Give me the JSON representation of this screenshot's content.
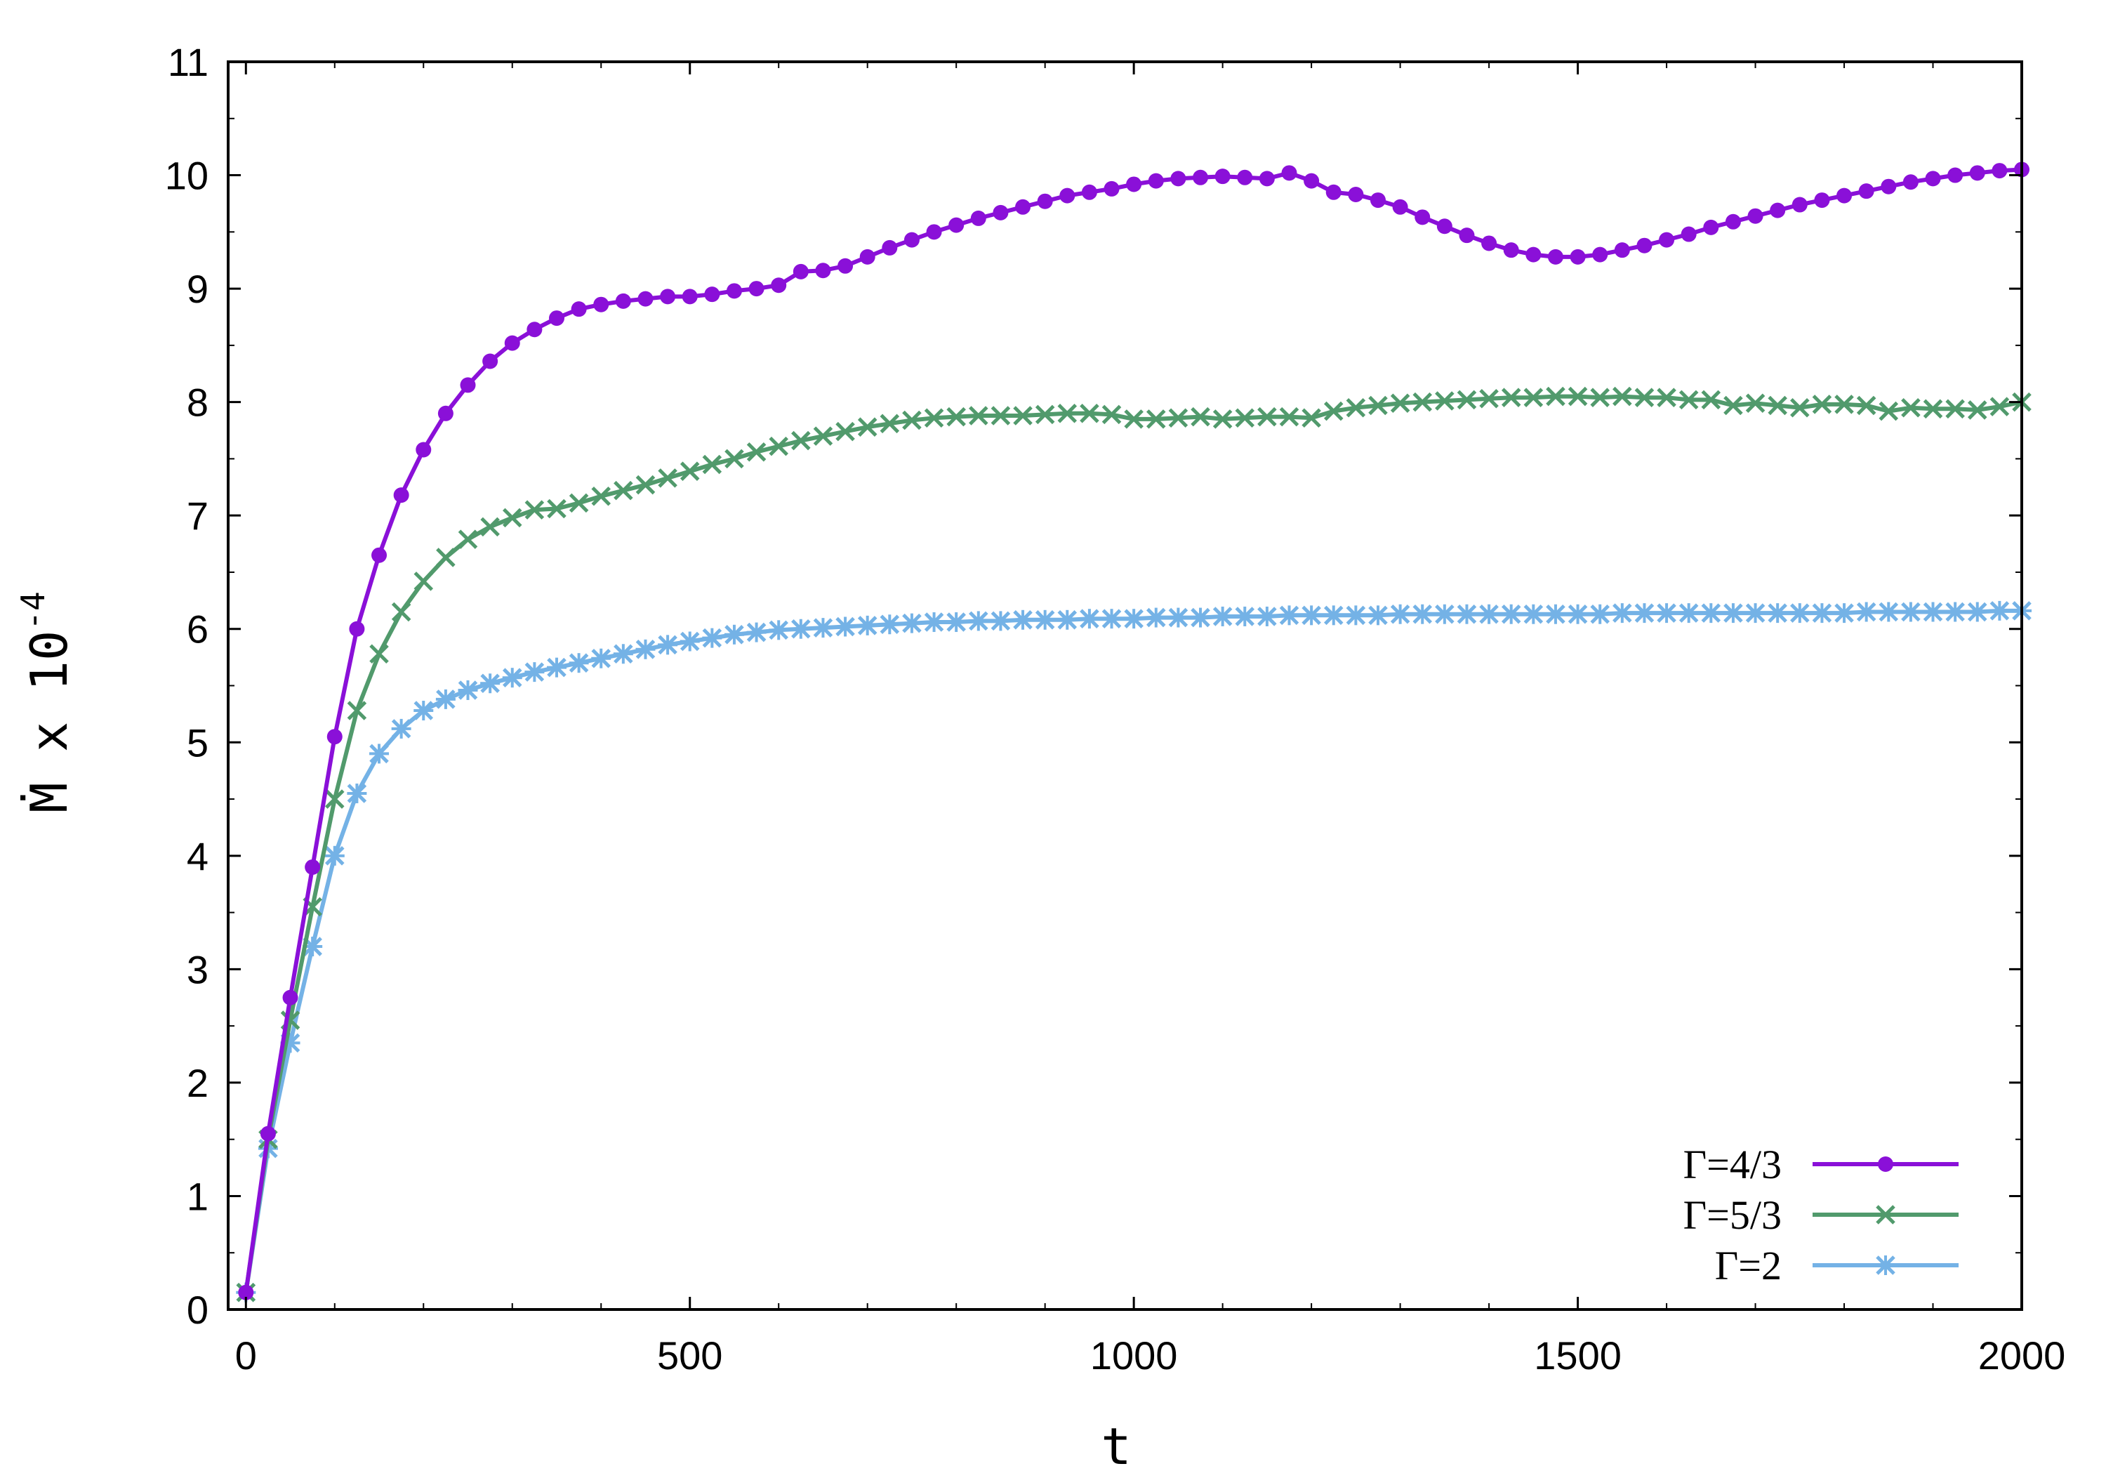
{
  "chart_data": {
    "type": "line",
    "xlabel": "t",
    "ylabel": {
      "text": "Ṁ x 10",
      "exponent": "-4"
    },
    "xlim": [
      -20,
      2000
    ],
    "ylim": [
      0,
      11
    ],
    "x_ticks": [
      0,
      500,
      1000,
      1500,
      2000
    ],
    "y_ticks": [
      0,
      1,
      2,
      3,
      4,
      5,
      6,
      7,
      8,
      9,
      10,
      11
    ],
    "grid": false,
    "legend_position": "bottom-right",
    "series": [
      {
        "name": "Γ=4/3",
        "color": "#8a10d8",
        "marker": "circle",
        "points": [
          [
            0,
            0.15
          ],
          [
            25,
            1.55
          ],
          [
            50,
            2.75
          ],
          [
            75,
            3.9
          ],
          [
            100,
            5.05
          ],
          [
            125,
            6.0
          ],
          [
            150,
            6.65
          ],
          [
            175,
            7.18
          ],
          [
            200,
            7.58
          ],
          [
            225,
            7.9
          ],
          [
            250,
            8.15
          ],
          [
            275,
            8.36
          ],
          [
            300,
            8.52
          ],
          [
            325,
            8.64
          ],
          [
            350,
            8.74
          ],
          [
            375,
            8.82
          ],
          [
            400,
            8.86
          ],
          [
            425,
            8.89
          ],
          [
            450,
            8.91
          ],
          [
            475,
            8.93
          ],
          [
            500,
            8.93
          ],
          [
            525,
            8.95
          ],
          [
            550,
            8.98
          ],
          [
            575,
            9.0
          ],
          [
            600,
            9.03
          ],
          [
            625,
            9.15
          ],
          [
            650,
            9.16
          ],
          [
            675,
            9.2
          ],
          [
            700,
            9.28
          ],
          [
            725,
            9.36
          ],
          [
            750,
            9.43
          ],
          [
            775,
            9.5
          ],
          [
            800,
            9.56
          ],
          [
            825,
            9.62
          ],
          [
            850,
            9.67
          ],
          [
            875,
            9.72
          ],
          [
            900,
            9.77
          ],
          [
            925,
            9.82
          ],
          [
            950,
            9.85
          ],
          [
            975,
            9.88
          ],
          [
            1000,
            9.92
          ],
          [
            1025,
            9.95
          ],
          [
            1050,
            9.97
          ],
          [
            1075,
            9.98
          ],
          [
            1100,
            9.99
          ],
          [
            1125,
            9.98
          ],
          [
            1150,
            9.97
          ],
          [
            1175,
            10.02
          ],
          [
            1200,
            9.95
          ],
          [
            1225,
            9.85
          ],
          [
            1250,
            9.83
          ],
          [
            1275,
            9.78
          ],
          [
            1300,
            9.72
          ],
          [
            1325,
            9.63
          ],
          [
            1350,
            9.55
          ],
          [
            1375,
            9.47
          ],
          [
            1400,
            9.4
          ],
          [
            1425,
            9.34
          ],
          [
            1450,
            9.3
          ],
          [
            1475,
            9.28
          ],
          [
            1500,
            9.28
          ],
          [
            1525,
            9.3
          ],
          [
            1550,
            9.34
          ],
          [
            1575,
            9.38
          ],
          [
            1600,
            9.43
          ],
          [
            1625,
            9.48
          ],
          [
            1650,
            9.54
          ],
          [
            1675,
            9.59
          ],
          [
            1700,
            9.64
          ],
          [
            1725,
            9.69
          ],
          [
            1750,
            9.74
          ],
          [
            1775,
            9.78
          ],
          [
            1800,
            9.82
          ],
          [
            1825,
            9.86
          ],
          [
            1850,
            9.9
          ],
          [
            1875,
            9.94
          ],
          [
            1900,
            9.97
          ],
          [
            1925,
            10.0
          ],
          [
            1950,
            10.02
          ],
          [
            1975,
            10.04
          ],
          [
            2000,
            10.05
          ]
        ]
      },
      {
        "name": "Γ=5/3",
        "color": "#519a6c",
        "marker": "x",
        "points": [
          [
            0,
            0.15
          ],
          [
            25,
            1.5
          ],
          [
            50,
            2.55
          ],
          [
            75,
            3.55
          ],
          [
            100,
            4.5
          ],
          [
            125,
            5.28
          ],
          [
            150,
            5.78
          ],
          [
            175,
            6.15
          ],
          [
            200,
            6.42
          ],
          [
            225,
            6.63
          ],
          [
            250,
            6.79
          ],
          [
            275,
            6.9
          ],
          [
            300,
            6.98
          ],
          [
            325,
            7.05
          ],
          [
            350,
            7.06
          ],
          [
            375,
            7.11
          ],
          [
            400,
            7.17
          ],
          [
            425,
            7.22
          ],
          [
            450,
            7.27
          ],
          [
            475,
            7.33
          ],
          [
            500,
            7.39
          ],
          [
            525,
            7.45
          ],
          [
            550,
            7.5
          ],
          [
            575,
            7.56
          ],
          [
            600,
            7.61
          ],
          [
            625,
            7.66
          ],
          [
            650,
            7.7
          ],
          [
            675,
            7.74
          ],
          [
            700,
            7.78
          ],
          [
            725,
            7.81
          ],
          [
            750,
            7.84
          ],
          [
            775,
            7.86
          ],
          [
            800,
            7.87
          ],
          [
            825,
            7.88
          ],
          [
            850,
            7.88
          ],
          [
            875,
            7.88
          ],
          [
            900,
            7.89
          ],
          [
            925,
            7.9
          ],
          [
            950,
            7.9
          ],
          [
            975,
            7.89
          ],
          [
            1000,
            7.85
          ],
          [
            1025,
            7.85
          ],
          [
            1050,
            7.86
          ],
          [
            1075,
            7.87
          ],
          [
            1100,
            7.85
          ],
          [
            1125,
            7.86
          ],
          [
            1150,
            7.87
          ],
          [
            1175,
            7.87
          ],
          [
            1200,
            7.86
          ],
          [
            1225,
            7.92
          ],
          [
            1250,
            7.95
          ],
          [
            1275,
            7.97
          ],
          [
            1300,
            7.99
          ],
          [
            1325,
            8.0
          ],
          [
            1350,
            8.01
          ],
          [
            1375,
            8.02
          ],
          [
            1400,
            8.03
          ],
          [
            1425,
            8.04
          ],
          [
            1450,
            8.04
          ],
          [
            1475,
            8.05
          ],
          [
            1500,
            8.05
          ],
          [
            1525,
            8.04
          ],
          [
            1550,
            8.05
          ],
          [
            1575,
            8.04
          ],
          [
            1600,
            8.04
          ],
          [
            1625,
            8.02
          ],
          [
            1650,
            8.02
          ],
          [
            1675,
            7.97
          ],
          [
            1700,
            7.99
          ],
          [
            1725,
            7.97
          ],
          [
            1750,
            7.95
          ],
          [
            1775,
            7.98
          ],
          [
            1800,
            7.98
          ],
          [
            1825,
            7.97
          ],
          [
            1850,
            7.92
          ],
          [
            1875,
            7.95
          ],
          [
            1900,
            7.94
          ],
          [
            1925,
            7.94
          ],
          [
            1950,
            7.93
          ],
          [
            1975,
            7.96
          ],
          [
            2000,
            8.0
          ]
        ]
      },
      {
        "name": "Γ=2",
        "color": "#74b2e6",
        "marker": "star",
        "points": [
          [
            0,
            0.15
          ],
          [
            25,
            1.42
          ],
          [
            50,
            2.35
          ],
          [
            75,
            3.2
          ],
          [
            100,
            4.0
          ],
          [
            125,
            4.55
          ],
          [
            150,
            4.9
          ],
          [
            175,
            5.12
          ],
          [
            200,
            5.28
          ],
          [
            225,
            5.38
          ],
          [
            250,
            5.46
          ],
          [
            275,
            5.52
          ],
          [
            300,
            5.57
          ],
          [
            325,
            5.62
          ],
          [
            350,
            5.66
          ],
          [
            375,
            5.7
          ],
          [
            400,
            5.74
          ],
          [
            425,
            5.78
          ],
          [
            450,
            5.82
          ],
          [
            475,
            5.86
          ],
          [
            500,
            5.89
          ],
          [
            525,
            5.92
          ],
          [
            550,
            5.95
          ],
          [
            575,
            5.97
          ],
          [
            600,
            5.99
          ],
          [
            625,
            6.0
          ],
          [
            650,
            6.01
          ],
          [
            675,
            6.02
          ],
          [
            700,
            6.03
          ],
          [
            725,
            6.04
          ],
          [
            750,
            6.05
          ],
          [
            775,
            6.06
          ],
          [
            800,
            6.06
          ],
          [
            825,
            6.07
          ],
          [
            850,
            6.07
          ],
          [
            875,
            6.08
          ],
          [
            900,
            6.08
          ],
          [
            925,
            6.08
          ],
          [
            950,
            6.09
          ],
          [
            975,
            6.09
          ],
          [
            1000,
            6.09
          ],
          [
            1025,
            6.1
          ],
          [
            1050,
            6.1
          ],
          [
            1075,
            6.1
          ],
          [
            1100,
            6.11
          ],
          [
            1125,
            6.11
          ],
          [
            1150,
            6.11
          ],
          [
            1175,
            6.12
          ],
          [
            1200,
            6.12
          ],
          [
            1225,
            6.12
          ],
          [
            1250,
            6.12
          ],
          [
            1275,
            6.12
          ],
          [
            1300,
            6.13
          ],
          [
            1325,
            6.13
          ],
          [
            1350,
            6.13
          ],
          [
            1375,
            6.13
          ],
          [
            1400,
            6.13
          ],
          [
            1425,
            6.13
          ],
          [
            1450,
            6.13
          ],
          [
            1475,
            6.13
          ],
          [
            1500,
            6.13
          ],
          [
            1525,
            6.13
          ],
          [
            1550,
            6.14
          ],
          [
            1575,
            6.14
          ],
          [
            1600,
            6.14
          ],
          [
            1625,
            6.14
          ],
          [
            1650,
            6.14
          ],
          [
            1675,
            6.14
          ],
          [
            1700,
            6.14
          ],
          [
            1725,
            6.14
          ],
          [
            1750,
            6.14
          ],
          [
            1775,
            6.14
          ],
          [
            1800,
            6.14
          ],
          [
            1825,
            6.15
          ],
          [
            1850,
            6.15
          ],
          [
            1875,
            6.15
          ],
          [
            1900,
            6.15
          ],
          [
            1925,
            6.15
          ],
          [
            1950,
            6.15
          ],
          [
            1975,
            6.16
          ],
          [
            2000,
            6.16
          ]
        ]
      }
    ]
  }
}
